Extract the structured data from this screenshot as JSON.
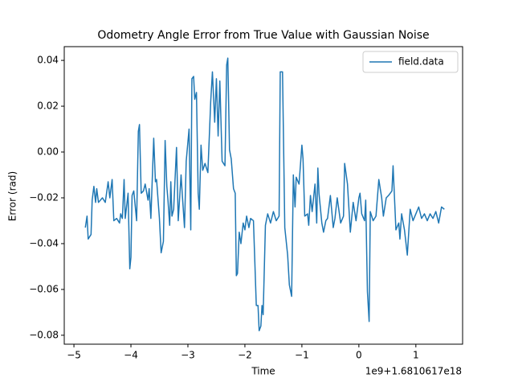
{
  "chart_data": {
    "type": "line",
    "title": "Odometry Angle Error from True Value with Gaussian Noise",
    "x_label": "Time",
    "y_label": "Error (rad)",
    "x_offset_label": "1e9+1.6810617e18",
    "legend": "upper right",
    "grid": false,
    "xlim": [
      -5.17,
      1.82
    ],
    "ylim": [
      -0.0839,
      0.046
    ],
    "xticks": [
      {
        "value": -5,
        "label": "−5"
      },
      {
        "value": -4,
        "label": "−4"
      },
      {
        "value": -3,
        "label": "−3"
      },
      {
        "value": -2,
        "label": "−2"
      },
      {
        "value": -1,
        "label": "−1"
      },
      0,
      1
    ],
    "yticks": [
      {
        "value": -0.08,
        "label": "−0.08"
      },
      {
        "value": -0.06,
        "label": "−0.06"
      },
      {
        "value": -0.04,
        "label": "−0.04"
      },
      {
        "value": -0.02,
        "label": "−0.02"
      },
      {
        "value": 0,
        "label": "0.00"
      },
      {
        "value": 0.02,
        "label": "0.02"
      },
      {
        "value": 0.04,
        "label": "0.04"
      }
    ],
    "x": [
      -4.8,
      -4.77,
      -4.75,
      -4.7,
      -4.68,
      -4.65,
      -4.62,
      -4.6,
      -4.57,
      -4.5,
      -4.45,
      -4.4,
      -4.37,
      -4.33,
      -4.3,
      -4.25,
      -4.2,
      -4.18,
      -4.15,
      -4.12,
      -4.1,
      -4.05,
      -4.02,
      -4.0,
      -3.98,
      -3.95,
      -3.9,
      -3.87,
      -3.85,
      -3.82,
      -3.78,
      -3.75,
      -3.7,
      -3.68,
      -3.65,
      -3.6,
      -3.57,
      -3.55,
      -3.5,
      -3.47,
      -3.43,
      -3.4,
      -3.37,
      -3.35,
      -3.32,
      -3.3,
      -3.28,
      -3.25,
      -3.2,
      -3.17,
      -3.12,
      -3.1,
      -3.06,
      -3.03,
      -2.98,
      -2.95,
      -2.93,
      -2.9,
      -2.88,
      -2.85,
      -2.82,
      -2.8,
      -2.77,
      -2.74,
      -2.7,
      -2.65,
      -2.6,
      -2.57,
      -2.53,
      -2.5,
      -2.47,
      -2.44,
      -2.4,
      -2.35,
      -2.32,
      -2.3,
      -2.27,
      -2.24,
      -2.2,
      -2.17,
      -2.15,
      -2.13,
      -2.1,
      -2.07,
      -2.03,
      -2.0,
      -1.97,
      -1.93,
      -1.9,
      -1.85,
      -1.8,
      -1.77,
      -1.75,
      -1.72,
      -1.7,
      -1.68,
      -1.64,
      -1.6,
      -1.55,
      -1.5,
      -1.45,
      -1.4,
      -1.38,
      -1.34,
      -1.3,
      -1.25,
      -1.22,
      -1.18,
      -1.15,
      -1.12,
      -1.1,
      -1.05,
      -1.0,
      -0.98,
      -0.95,
      -0.9,
      -0.88,
      -0.85,
      -0.82,
      -0.77,
      -0.74,
      -0.72,
      -0.7,
      -0.65,
      -0.62,
      -0.58,
      -0.55,
      -0.5,
      -0.45,
      -0.42,
      -0.38,
      -0.32,
      -0.27,
      -0.25,
      -0.2,
      -0.15,
      -0.1,
      -0.05,
      0.0,
      0.02,
      0.05,
      0.1,
      0.12,
      0.15,
      0.18,
      0.2,
      0.25,
      0.3,
      0.35,
      0.4,
      0.43,
      0.48,
      0.52,
      0.58,
      0.6,
      0.65,
      0.7,
      0.72,
      0.75,
      0.8,
      0.85,
      0.9,
      0.95,
      1.0,
      1.05,
      1.1,
      1.15,
      1.2,
      1.25,
      1.3,
      1.35,
      1.4,
      1.45,
      1.5
    ],
    "series": [
      {
        "name": "field.data",
        "color": "#1f77b4",
        "values": [
          -0.033,
          -0.028,
          -0.038,
          -0.036,
          -0.021,
          -0.015,
          -0.022,
          -0.016,
          -0.022,
          -0.02,
          -0.022,
          -0.013,
          -0.02,
          -0.012,
          -0.03,
          -0.029,
          -0.031,
          -0.027,
          -0.029,
          -0.012,
          -0.029,
          -0.018,
          -0.051,
          -0.046,
          -0.019,
          -0.017,
          -0.03,
          0.009,
          0.012,
          -0.018,
          -0.017,
          -0.014,
          -0.021,
          -0.016,
          -0.029,
          0.006,
          -0.013,
          -0.012,
          -0.029,
          -0.044,
          -0.039,
          0.005,
          -0.015,
          -0.021,
          -0.032,
          -0.013,
          -0.028,
          -0.025,
          0.002,
          -0.03,
          -0.01,
          -0.018,
          -0.033,
          -0.004,
          0.01,
          -0.034,
          0.032,
          0.033,
          0.023,
          0.026,
          -0.018,
          -0.025,
          0.003,
          -0.008,
          -0.005,
          -0.009,
          0.022,
          0.035,
          0.013,
          0.032,
          0.007,
          0.031,
          -0.004,
          -0.006,
          0.038,
          0.041,
          0.001,
          -0.003,
          -0.016,
          -0.018,
          -0.054,
          -0.053,
          -0.035,
          -0.04,
          -0.031,
          -0.034,
          -0.028,
          -0.033,
          -0.029,
          -0.03,
          -0.067,
          -0.067,
          -0.078,
          -0.076,
          -0.067,
          -0.071,
          -0.032,
          -0.027,
          -0.031,
          -0.026,
          -0.03,
          -0.028,
          0.035,
          0.035,
          -0.033,
          -0.045,
          -0.058,
          -0.063,
          -0.01,
          -0.024,
          -0.011,
          -0.014,
          0.003,
          -0.003,
          -0.028,
          -0.027,
          -0.032,
          -0.019,
          -0.026,
          -0.014,
          -0.031,
          -0.007,
          -0.018,
          -0.031,
          -0.035,
          -0.03,
          -0.029,
          -0.019,
          -0.033,
          -0.029,
          -0.02,
          -0.031,
          -0.028,
          -0.005,
          -0.014,
          -0.035,
          -0.022,
          -0.03,
          -0.02,
          -0.018,
          -0.027,
          -0.03,
          -0.021,
          -0.061,
          -0.074,
          -0.026,
          -0.03,
          -0.028,
          -0.012,
          -0.02,
          -0.028,
          -0.02,
          -0.019,
          -0.017,
          -0.006,
          -0.034,
          -0.031,
          -0.038,
          -0.027,
          -0.034,
          -0.045,
          -0.025,
          -0.03,
          -0.027,
          -0.024,
          -0.029,
          -0.027,
          -0.03,
          -0.027,
          -0.029,
          -0.026,
          -0.031,
          -0.024,
          -0.025
        ]
      }
    ]
  }
}
